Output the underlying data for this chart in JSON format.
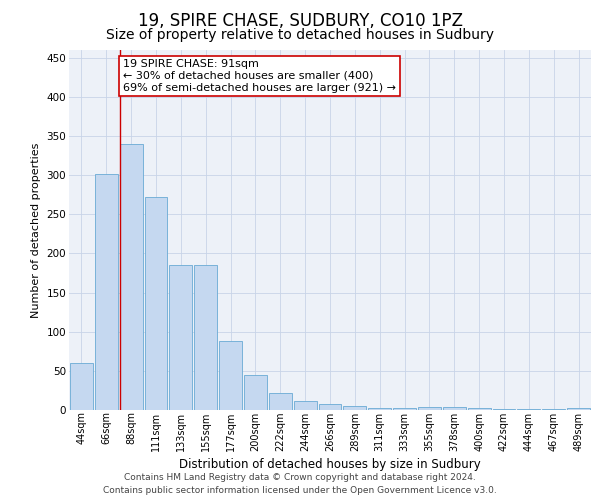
{
  "title": "19, SPIRE CHASE, SUDBURY, CO10 1PZ",
  "subtitle": "Size of property relative to detached houses in Sudbury",
  "xlabel": "Distribution of detached houses by size in Sudbury",
  "ylabel": "Number of detached properties",
  "categories": [
    "44sqm",
    "66sqm",
    "88sqm",
    "111sqm",
    "133sqm",
    "155sqm",
    "177sqm",
    "200sqm",
    "222sqm",
    "244sqm",
    "266sqm",
    "289sqm",
    "311sqm",
    "333sqm",
    "355sqm",
    "378sqm",
    "400sqm",
    "422sqm",
    "444sqm",
    "467sqm",
    "489sqm"
  ],
  "values": [
    60,
    302,
    340,
    272,
    185,
    185,
    88,
    45,
    22,
    12,
    8,
    5,
    3,
    3,
    4,
    4,
    3,
    1,
    1,
    1,
    3
  ],
  "bar_color": "#c5d8f0",
  "bar_edge_color": "#6aaad4",
  "annotation_text_line1": "19 SPIRE CHASE: 91sqm",
  "annotation_text_line2": "← 30% of detached houses are smaller (400)",
  "annotation_text_line3": "69% of semi-detached houses are larger (921) →",
  "annotation_box_color": "#ffffff",
  "annotation_box_edge_color": "#cc0000",
  "vline_color": "#cc0000",
  "grid_color": "#c8d4e8",
  "background_color": "#edf1f8",
  "footer_line1": "Contains HM Land Registry data © Crown copyright and database right 2024.",
  "footer_line2": "Contains public sector information licensed under the Open Government Licence v3.0.",
  "ylim": [
    0,
    460
  ],
  "title_fontsize": 12,
  "subtitle_fontsize": 10,
  "xlabel_fontsize": 8.5,
  "ylabel_fontsize": 8,
  "tick_fontsize": 7,
  "annotation_fontsize": 8,
  "footer_fontsize": 6.5
}
